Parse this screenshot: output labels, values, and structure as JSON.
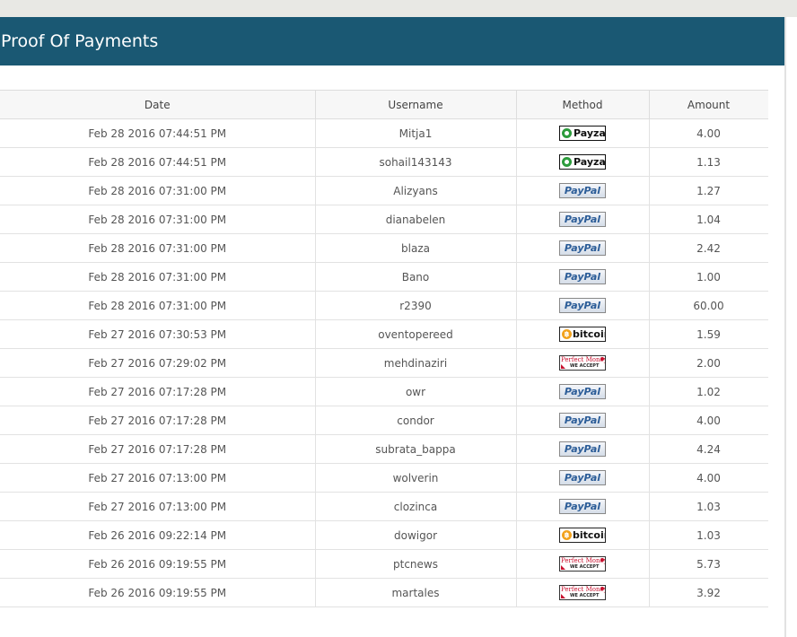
{
  "page": {
    "title": "Proof Of Payments"
  },
  "table": {
    "columns": [
      "Date",
      "Username",
      "Method",
      "Amount"
    ],
    "method_labels": {
      "payza": "Payza",
      "paypal": "PayPal",
      "bitcoin": "bitcoin",
      "perfectmoney": "Perfect Money",
      "perfectmoney_sub": "WE ACCEPT"
    },
    "rows": [
      {
        "date": "Feb 28 2016 07:44:51 PM",
        "username": "Mitja1",
        "method": "payza",
        "amount": "4.00"
      },
      {
        "date": "Feb 28 2016 07:44:51 PM",
        "username": "sohail143143",
        "method": "payza",
        "amount": "1.13"
      },
      {
        "date": "Feb 28 2016 07:31:00 PM",
        "username": "Alizyans",
        "method": "paypal",
        "amount": "1.27"
      },
      {
        "date": "Feb 28 2016 07:31:00 PM",
        "username": "dianabelen",
        "method": "paypal",
        "amount": "1.04"
      },
      {
        "date": "Feb 28 2016 07:31:00 PM",
        "username": "blaza",
        "method": "paypal",
        "amount": "2.42"
      },
      {
        "date": "Feb 28 2016 07:31:00 PM",
        "username": "Bano",
        "method": "paypal",
        "amount": "1.00"
      },
      {
        "date": "Feb 28 2016 07:31:00 PM",
        "username": "r2390",
        "method": "paypal",
        "amount": "60.00"
      },
      {
        "date": "Feb 27 2016 07:30:53 PM",
        "username": "oventopereed",
        "method": "bitcoin",
        "amount": "1.59"
      },
      {
        "date": "Feb 27 2016 07:29:02 PM",
        "username": "mehdinaziri",
        "method": "perfectmoney",
        "amount": "2.00"
      },
      {
        "date": "Feb 27 2016 07:17:28 PM",
        "username": "owr",
        "method": "paypal",
        "amount": "1.02"
      },
      {
        "date": "Feb 27 2016 07:17:28 PM",
        "username": "condor",
        "method": "paypal",
        "amount": "4.00"
      },
      {
        "date": "Feb 27 2016 07:17:28 PM",
        "username": "subrata_bappa",
        "method": "paypal",
        "amount": "4.24"
      },
      {
        "date": "Feb 27 2016 07:13:00 PM",
        "username": "wolverin",
        "method": "paypal",
        "amount": "4.00"
      },
      {
        "date": "Feb 27 2016 07:13:00 PM",
        "username": "clozinca",
        "method": "paypal",
        "amount": "1.03"
      },
      {
        "date": "Feb 26 2016 09:22:14 PM",
        "username": "dowigor",
        "method": "bitcoin",
        "amount": "1.03"
      },
      {
        "date": "Feb 26 2016 09:19:55 PM",
        "username": "ptcnews",
        "method": "perfectmoney",
        "amount": "5.73"
      },
      {
        "date": "Feb 26 2016 09:19:55 PM",
        "username": "martales",
        "method": "perfectmoney",
        "amount": "3.92"
      }
    ]
  }
}
